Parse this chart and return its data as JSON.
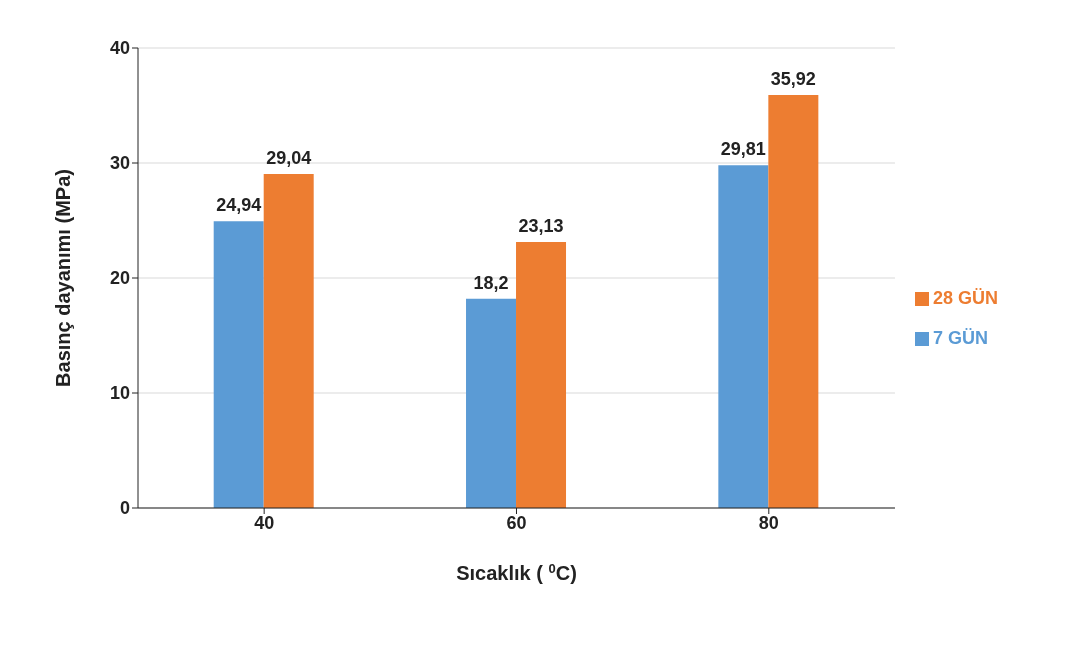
{
  "chart_data": {
    "type": "bar",
    "xlabel": "Sıcaklık ( $^{0}$C)",
    "ylabel": "Basınç  dayanımı (MPa)",
    "categories": [
      "40",
      "60",
      "80"
    ],
    "series": [
      {
        "name": "7 GÜN",
        "color": "#5b9bd5",
        "values": [
          24.94,
          18.2,
          29.81
        ],
        "value_labels": [
          "24,94",
          "18,2",
          "29,81"
        ]
      },
      {
        "name": "28 GÜN",
        "color": "#ed7d31",
        "values": [
          29.04,
          23.13,
          35.92
        ],
        "value_labels": [
          "29,04",
          "23,13",
          "35,92"
        ]
      }
    ],
    "ylim": [
      0,
      40
    ],
    "yticks": [
      0,
      10,
      20,
      30,
      40
    ],
    "grid": "y",
    "legend": "right"
  }
}
